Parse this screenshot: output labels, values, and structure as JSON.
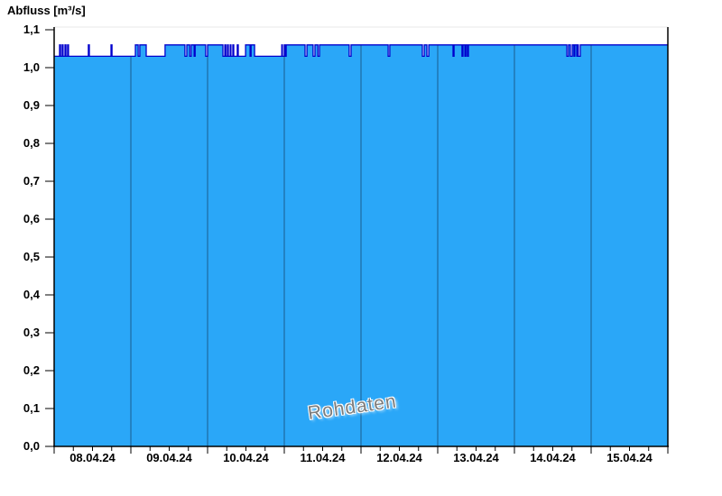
{
  "title": "Abfluss [m³/s]",
  "chart_data": {
    "type": "area",
    "title": "Abfluss [m³/s]",
    "watermark": "Rohdaten",
    "legend_position": "none",
    "grid": "vertical-day-boundaries-only",
    "x_axis": {
      "tick_labels": [
        "08.04.24",
        "09.04.24",
        "10.04.24",
        "11.04.24",
        "12.04.24",
        "13.04.24",
        "14.04.24",
        "15.04.24"
      ],
      "range_hours": [
        0,
        192
      ],
      "major_tick_hours": 24,
      "minor_tick_hours": 6
    },
    "y_axis": {
      "label": "Abfluss [m³/s]",
      "tick_labels": [
        "1,1",
        "1,0",
        "0,9",
        "0,8",
        "0,7",
        "0,6",
        "0,5",
        "0,4",
        "0,3",
        "0,2",
        "0,1",
        "0,0"
      ],
      "tick_values": [
        1.1,
        1.0,
        0.9,
        0.8,
        0.7,
        0.6,
        0.5,
        0.4,
        0.3,
        0.2,
        0.1,
        0.0
      ],
      "ylim": [
        0.0,
        1.1
      ]
    },
    "series": [
      {
        "name": "Rohdaten",
        "unit": "m³/s",
        "interpolation": "step-after",
        "base_level": 1.03,
        "high_level": 1.06,
        "steps": [
          [
            0,
            1.03
          ],
          [
            1.7,
            1.06
          ],
          [
            2,
            1.03
          ],
          [
            2.5,
            1.06
          ],
          [
            2.8,
            1.03
          ],
          [
            3.4,
            1.06
          ],
          [
            3.7,
            1.03
          ],
          [
            4.2,
            1.06
          ],
          [
            4.5,
            1.03
          ],
          [
            10.7,
            1.06
          ],
          [
            11,
            1.03
          ],
          [
            17.8,
            1.06
          ],
          [
            18.1,
            1.03
          ],
          [
            25.4,
            1.06
          ],
          [
            26.3,
            1.03
          ],
          [
            26.8,
            1.06
          ],
          [
            28.8,
            1.03
          ],
          [
            34.7,
            1.06
          ],
          [
            40.9,
            1.03
          ],
          [
            41.5,
            1.06
          ],
          [
            42.4,
            1.03
          ],
          [
            42.9,
            1.06
          ],
          [
            43.8,
            1.03
          ],
          [
            44.1,
            1.06
          ],
          [
            47.4,
            1.03
          ],
          [
            48,
            1.06
          ],
          [
            52.8,
            1.03
          ],
          [
            53.4,
            1.06
          ],
          [
            53.7,
            1.03
          ],
          [
            54.2,
            1.06
          ],
          [
            54.5,
            1.03
          ],
          [
            55.1,
            1.06
          ],
          [
            55.3,
            1.03
          ],
          [
            55.9,
            1.06
          ],
          [
            56.2,
            1.03
          ],
          [
            57.3,
            1.06
          ],
          [
            57.6,
            1.03
          ],
          [
            59.9,
            1.06
          ],
          [
            61.3,
            1.03
          ],
          [
            61.6,
            1.06
          ],
          [
            62.7,
            1.03
          ],
          [
            71.2,
            1.06
          ],
          [
            71.4,
            1.03
          ],
          [
            72,
            1.06
          ],
          [
            72.3,
            1.03
          ],
          [
            72.6,
            1.06
          ],
          [
            78.5,
            1.03
          ],
          [
            79.1,
            1.06
          ],
          [
            81,
            1.03
          ],
          [
            81.6,
            1.06
          ],
          [
            82.5,
            1.03
          ],
          [
            83,
            1.06
          ],
          [
            92.3,
            1.03
          ],
          [
            92.9,
            1.06
          ],
          [
            104.5,
            1.03
          ],
          [
            105,
            1.06
          ],
          [
            115.2,
            1.03
          ],
          [
            115.8,
            1.06
          ],
          [
            116.6,
            1.03
          ],
          [
            117.2,
            1.06
          ],
          [
            124.8,
            1.03
          ],
          [
            125.1,
            1.06
          ],
          [
            127.6,
            1.03
          ],
          [
            127.9,
            1.06
          ],
          [
            128.5,
            1.03
          ],
          [
            128.8,
            1.06
          ],
          [
            129.3,
            1.03
          ],
          [
            129.6,
            1.06
          ],
          [
            160.4,
            1.03
          ],
          [
            160.9,
            1.06
          ],
          [
            161.5,
            1.03
          ],
          [
            162.1,
            1.06
          ],
          [
            162.6,
            1.03
          ],
          [
            162.9,
            1.06
          ],
          [
            163.5,
            1.03
          ],
          [
            163.8,
            1.06
          ],
          [
            164,
            1.03
          ],
          [
            164.6,
            1.06
          ]
        ],
        "end_hour": 192
      }
    ],
    "colors": {
      "fill": "#2AA7F8",
      "line": "#0000CD",
      "gridline": "#1E6AA0",
      "frame": "#000000",
      "frame_top": "#E8E8E8",
      "watermark": "#7D7D7D",
      "background": "#FFFFFF"
    }
  }
}
